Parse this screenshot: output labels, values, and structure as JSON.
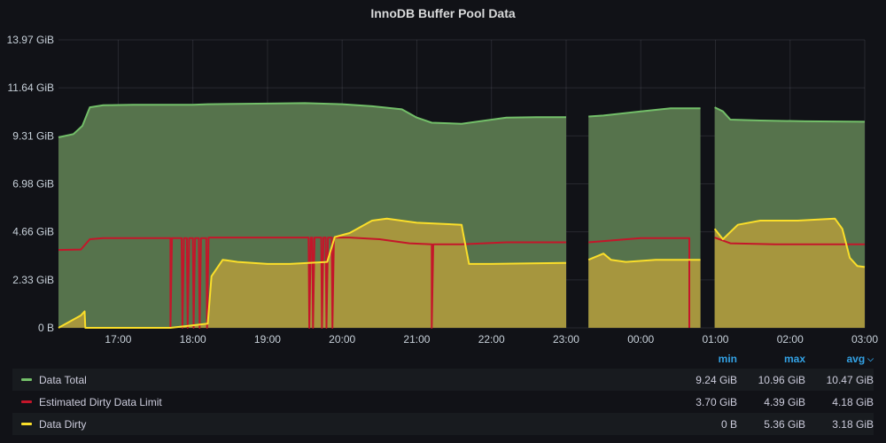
{
  "panel": {
    "title": "InnoDB Buffer Pool Data"
  },
  "chart_data": {
    "type": "area",
    "title": "InnoDB Buffer Pool Data",
    "xlabel": "",
    "ylabel": "",
    "x_ticks": [
      "17:00",
      "18:00",
      "19:00",
      "20:00",
      "21:00",
      "22:00",
      "23:00",
      "00:00",
      "01:00",
      "02:00",
      "03:00"
    ],
    "y_ticks": [
      "0 B",
      "2.33 GiB",
      "4.66 GiB",
      "6.98 GiB",
      "9.31 GiB",
      "11.64 GiB",
      "13.97 GiB"
    ],
    "ylim": [
      0,
      13.97
    ],
    "x_range_hours": [
      16.2,
      27.0
    ],
    "grid": true,
    "legend_position": "bottom",
    "series": [
      {
        "name": "Data Total",
        "color": "#73bf69",
        "fill": "#56734c",
        "points": [
          [
            16.2,
            9.24
          ],
          [
            16.4,
            9.4
          ],
          [
            16.52,
            9.8
          ],
          [
            16.62,
            10.7
          ],
          [
            16.8,
            10.8
          ],
          [
            17.2,
            10.82
          ],
          [
            18.0,
            10.82
          ],
          [
            18.2,
            10.85
          ],
          [
            19.0,
            10.88
          ],
          [
            19.5,
            10.9
          ],
          [
            20.0,
            10.85
          ],
          [
            20.4,
            10.75
          ],
          [
            20.8,
            10.6
          ],
          [
            21.0,
            10.2
          ],
          [
            21.2,
            9.95
          ],
          [
            21.6,
            9.9
          ],
          [
            21.8,
            10.0
          ],
          [
            22.2,
            10.2
          ],
          [
            22.6,
            10.22
          ],
          [
            23.0,
            10.22
          ],
          [
            23.05,
            null
          ],
          [
            23.12,
            10.22
          ],
          [
            23.22,
            null
          ],
          [
            23.3,
            10.25
          ],
          [
            23.5,
            10.3
          ],
          [
            24.0,
            10.5
          ],
          [
            24.4,
            10.65
          ],
          [
            24.8,
            10.65
          ],
          [
            24.82,
            null
          ],
          [
            24.99,
            10.7
          ],
          [
            25.1,
            10.5
          ],
          [
            25.2,
            10.1
          ],
          [
            25.6,
            10.06
          ],
          [
            26.2,
            10.02
          ],
          [
            27.0,
            10.0
          ]
        ]
      },
      {
        "name": "Estimated Dirty Data Limit",
        "color": "#c4162a",
        "points": [
          [
            16.2,
            3.78
          ],
          [
            16.5,
            3.8
          ],
          [
            16.62,
            4.3
          ],
          [
            16.8,
            4.35
          ],
          [
            17.7,
            4.35
          ],
          [
            17.7,
            0
          ],
          [
            17.72,
            4.35
          ],
          [
            17.85,
            4.35
          ],
          [
            17.86,
            0
          ],
          [
            17.88,
            4.35
          ],
          [
            17.92,
            4.35
          ],
          [
            17.93,
            0
          ],
          [
            17.95,
            4.35
          ],
          [
            18.0,
            4.35
          ],
          [
            18.01,
            0
          ],
          [
            18.03,
            4.35
          ],
          [
            18.08,
            4.35
          ],
          [
            18.09,
            0
          ],
          [
            18.11,
            4.35
          ],
          [
            18.18,
            4.35
          ],
          [
            18.19,
            0
          ],
          [
            18.21,
            4.38
          ],
          [
            19.55,
            4.38
          ],
          [
            19.56,
            0
          ],
          [
            19.58,
            4.38
          ],
          [
            19.6,
            4.38
          ],
          [
            19.61,
            0
          ],
          [
            19.63,
            4.38
          ],
          [
            19.72,
            4.38
          ],
          [
            19.73,
            0
          ],
          [
            19.75,
            4.38
          ],
          [
            19.78,
            4.38
          ],
          [
            19.79,
            0
          ],
          [
            19.81,
            4.38
          ],
          [
            19.86,
            4.38
          ],
          [
            19.87,
            0
          ],
          [
            19.89,
            4.38
          ],
          [
            20.1,
            4.38
          ],
          [
            20.5,
            4.3
          ],
          [
            20.9,
            4.1
          ],
          [
            21.2,
            4.05
          ],
          [
            21.2,
            0
          ],
          [
            21.22,
            4.05
          ],
          [
            21.6,
            4.05
          ],
          [
            22.2,
            4.15
          ],
          [
            23.0,
            4.15
          ],
          [
            23.05,
            null
          ],
          [
            23.3,
            4.15
          ],
          [
            24.0,
            4.35
          ],
          [
            24.65,
            4.35
          ],
          [
            24.65,
            0
          ],
          [
            24.67,
            null
          ],
          [
            24.99,
            4.38
          ],
          [
            25.2,
            4.1
          ],
          [
            25.8,
            4.05
          ],
          [
            27.0,
            4.05
          ]
        ]
      },
      {
        "name": "Data Dirty",
        "color": "#fade2a",
        "fill": "#a6963e",
        "points": [
          [
            16.2,
            0
          ],
          [
            16.5,
            0.6
          ],
          [
            16.55,
            0.8
          ],
          [
            16.56,
            0
          ],
          [
            17.7,
            0
          ],
          [
            18.2,
            0.2
          ],
          [
            18.25,
            2.5
          ],
          [
            18.4,
            3.3
          ],
          [
            18.6,
            3.2
          ],
          [
            19.0,
            3.1
          ],
          [
            19.3,
            3.1
          ],
          [
            19.8,
            3.2
          ],
          [
            19.9,
            4.4
          ],
          [
            20.1,
            4.6
          ],
          [
            20.4,
            5.2
          ],
          [
            20.6,
            5.3
          ],
          [
            21.0,
            5.1
          ],
          [
            21.6,
            5.0
          ],
          [
            21.62,
            4.6
          ],
          [
            21.7,
            3.1
          ],
          [
            22.0,
            3.1
          ],
          [
            23.0,
            3.15
          ],
          [
            23.05,
            null
          ],
          [
            23.3,
            3.3
          ],
          [
            23.5,
            3.6
          ],
          [
            23.6,
            3.3
          ],
          [
            23.8,
            3.2
          ],
          [
            24.2,
            3.3
          ],
          [
            24.6,
            3.3
          ],
          [
            24.8,
            3.3
          ],
          [
            24.82,
            null
          ],
          [
            24.99,
            4.8
          ],
          [
            25.1,
            4.3
          ],
          [
            25.3,
            5.0
          ],
          [
            25.6,
            5.2
          ],
          [
            26.1,
            5.2
          ],
          [
            26.6,
            5.3
          ],
          [
            26.7,
            4.8
          ],
          [
            26.8,
            3.4
          ],
          [
            26.9,
            3.0
          ],
          [
            27.0,
            2.95
          ]
        ]
      }
    ]
  },
  "legend": {
    "headers": {
      "min": "min",
      "max": "max",
      "avg": "avg"
    },
    "rows": [
      {
        "name": "Data Total",
        "color": "#73bf69",
        "min": "9.24 GiB",
        "max": "10.96 GiB",
        "avg": "10.47 GiB"
      },
      {
        "name": "Estimated Dirty Data Limit",
        "color": "#c4162a",
        "min": "3.70 GiB",
        "max": "4.39 GiB",
        "avg": "4.18 GiB"
      },
      {
        "name": "Data Dirty",
        "color": "#fade2a",
        "min": "0 B",
        "max": "5.36 GiB",
        "avg": "3.18 GiB"
      }
    ]
  }
}
